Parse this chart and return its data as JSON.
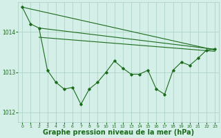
{
  "background_color": "#d4eee8",
  "grid_color": "#a8cfc0",
  "line_color": "#1a6b1a",
  "marker_color": "#1a6b1a",
  "xlabel": "Graphe pression niveau de la mer (hPa)",
  "xlabel_fontsize": 7,
  "ylim": [
    1011.75,
    1014.75
  ],
  "xlim": [
    -0.5,
    23.5
  ],
  "yticks": [
    1012,
    1013,
    1014
  ],
  "xticks": [
    0,
    1,
    2,
    3,
    4,
    5,
    6,
    7,
    8,
    9,
    10,
    11,
    12,
    13,
    14,
    15,
    16,
    17,
    18,
    19,
    20,
    21,
    22,
    23
  ],
  "straight_line1_x": [
    0,
    23
  ],
  "straight_line1_y": [
    1014.62,
    1013.55
  ],
  "straight_line2_x": [
    2,
    23
  ],
  "straight_line2_y": [
    1014.1,
    1013.57
  ],
  "straight_line3_x": [
    2,
    23
  ],
  "straight_line3_y": [
    1013.87,
    1013.52
  ],
  "zigzag_x": [
    0,
    1,
    2,
    3,
    4,
    5,
    6,
    7,
    8,
    9,
    10,
    11,
    12,
    13,
    14,
    15,
    16,
    17,
    18,
    19,
    20,
    21,
    22,
    23
  ],
  "zigzag_y": [
    1014.62,
    1014.2,
    1014.1,
    1013.05,
    1012.75,
    1012.58,
    1012.62,
    1012.2,
    1012.58,
    1012.75,
    1013.0,
    1013.28,
    1013.1,
    1012.95,
    1012.95,
    1013.05,
    1012.58,
    1012.45,
    1013.05,
    1013.25,
    1013.17,
    1013.35,
    1013.55,
    1013.58
  ]
}
